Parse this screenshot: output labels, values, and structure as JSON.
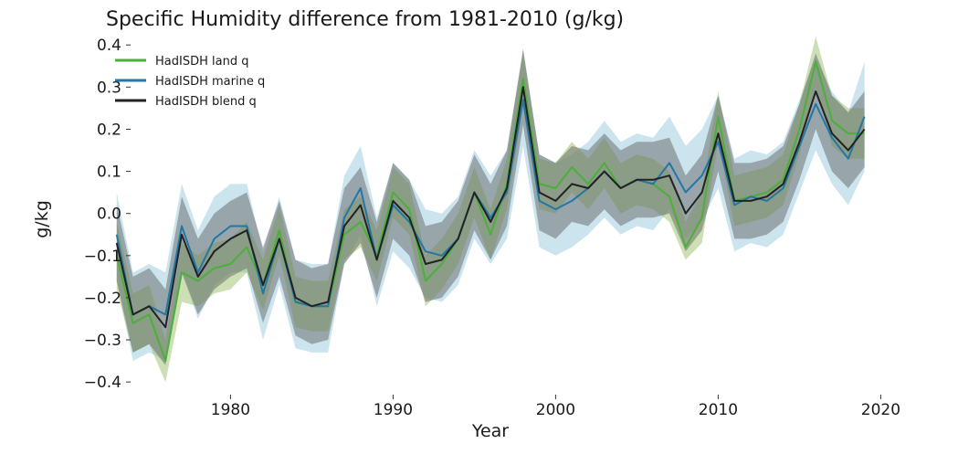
{
  "chart_data": {
    "type": "line",
    "title": "Specific Humidity difference from 1981-2010 (g/kg)",
    "xlabel": "Year",
    "ylabel": "g/kg",
    "xlim": [
      1972,
      2022
    ],
    "ylim": [
      -0.43,
      0.42
    ],
    "xticks": [
      1980,
      1990,
      2000,
      2010,
      2020
    ],
    "yticks": [
      0.4,
      0.3,
      0.2,
      0.1,
      0.0,
      -0.1,
      -0.2,
      -0.3,
      -0.4
    ],
    "ytick_labels": [
      "0.4",
      "0.3",
      "0.2",
      "0.1",
      "0.0",
      "−0.1",
      "−0.2",
      "−0.3",
      "−0.4"
    ],
    "grid": false,
    "legend_position": "top-left",
    "x": [
      1973,
      1974,
      1975,
      1976,
      1977,
      1978,
      1979,
      1980,
      1981,
      1982,
      1983,
      1984,
      1985,
      1986,
      1987,
      1988,
      1989,
      1990,
      1991,
      1992,
      1993,
      1994,
      1995,
      1996,
      1997,
      1998,
      1999,
      2000,
      2001,
      2002,
      2003,
      2004,
      2005,
      2006,
      2007,
      2008,
      2009,
      2010,
      2011,
      2012,
      2013,
      2014,
      2015,
      2016,
      2017,
      2018,
      2019
    ],
    "series": [
      {
        "name": "HadISDH land q",
        "color": "#4caf3c",
        "band_color": "#9bbf6a",
        "values": [
          -0.1,
          -0.26,
          -0.24,
          -0.35,
          -0.14,
          -0.16,
          -0.13,
          -0.12,
          -0.08,
          -0.17,
          -0.04,
          -0.21,
          -0.22,
          -0.22,
          -0.05,
          -0.02,
          -0.1,
          0.05,
          0.01,
          -0.16,
          -0.12,
          -0.06,
          0.05,
          -0.05,
          0.07,
          0.32,
          0.07,
          0.06,
          0.11,
          0.07,
          0.12,
          0.06,
          0.08,
          0.07,
          0.04,
          -0.08,
          -0.01,
          0.23,
          0.03,
          0.04,
          0.05,
          0.08,
          0.2,
          0.36,
          0.22,
          0.19,
          0.19
        ],
        "lower": [
          -0.18,
          -0.33,
          -0.31,
          -0.4,
          -0.21,
          -0.22,
          -0.19,
          -0.18,
          -0.14,
          -0.23,
          -0.1,
          -0.27,
          -0.28,
          -0.28,
          -0.11,
          -0.08,
          -0.16,
          -0.01,
          -0.05,
          -0.22,
          -0.18,
          -0.12,
          -0.01,
          -0.11,
          0.01,
          0.25,
          0.01,
          0.0,
          0.05,
          0.01,
          0.06,
          0.0,
          0.02,
          0.01,
          -0.02,
          -0.11,
          -0.07,
          0.17,
          -0.03,
          -0.02,
          -0.01,
          0.02,
          0.14,
          0.3,
          0.16,
          0.13,
          0.13
        ],
        "upper": [
          -0.02,
          -0.19,
          -0.17,
          -0.3,
          -0.07,
          -0.1,
          -0.07,
          -0.06,
          -0.02,
          -0.11,
          0.02,
          -0.15,
          -0.16,
          -0.16,
          0.01,
          0.04,
          -0.04,
          0.11,
          0.07,
          -0.1,
          -0.06,
          0.0,
          0.11,
          0.01,
          0.13,
          0.39,
          0.13,
          0.12,
          0.17,
          0.13,
          0.18,
          0.12,
          0.14,
          0.13,
          0.1,
          -0.02,
          0.05,
          0.29,
          0.09,
          0.1,
          0.11,
          0.14,
          0.26,
          0.42,
          0.28,
          0.25,
          0.25
        ]
      },
      {
        "name": "HadISDH marine q",
        "color": "#2277a6",
        "band_color": "#8cc3da",
        "values": [
          -0.05,
          -0.24,
          -0.22,
          -0.24,
          -0.03,
          -0.14,
          -0.06,
          -0.03,
          -0.03,
          -0.19,
          -0.06,
          -0.21,
          -0.22,
          -0.22,
          -0.01,
          0.06,
          -0.11,
          0.02,
          -0.02,
          -0.09,
          -0.1,
          -0.06,
          0.05,
          -0.01,
          0.05,
          0.27,
          0.03,
          0.01,
          0.03,
          0.06,
          0.1,
          0.06,
          0.08,
          0.07,
          0.12,
          0.05,
          0.09,
          0.17,
          0.02,
          0.04,
          0.03,
          0.06,
          0.16,
          0.26,
          0.18,
          0.13,
          0.23
        ],
        "lower": [
          -0.16,
          -0.35,
          -0.33,
          -0.35,
          -0.14,
          -0.25,
          -0.17,
          -0.14,
          -0.14,
          -0.3,
          -0.17,
          -0.32,
          -0.33,
          -0.33,
          -0.12,
          -0.05,
          -0.22,
          -0.09,
          -0.13,
          -0.2,
          -0.21,
          -0.17,
          -0.06,
          -0.12,
          -0.06,
          0.16,
          -0.08,
          -0.1,
          -0.08,
          -0.05,
          -0.01,
          -0.05,
          -0.03,
          -0.04,
          0.01,
          -0.06,
          -0.02,
          0.06,
          -0.09,
          -0.07,
          -0.08,
          -0.05,
          0.05,
          0.15,
          0.07,
          0.02,
          0.1
        ],
        "upper": [
          0.05,
          -0.14,
          -0.12,
          -0.14,
          0.07,
          -0.04,
          0.04,
          0.07,
          0.07,
          -0.09,
          0.04,
          -0.11,
          -0.12,
          -0.12,
          0.09,
          0.16,
          -0.01,
          0.12,
          0.08,
          0.01,
          0.0,
          0.04,
          0.15,
          0.09,
          0.15,
          0.38,
          0.14,
          0.12,
          0.14,
          0.17,
          0.22,
          0.17,
          0.19,
          0.18,
          0.23,
          0.16,
          0.2,
          0.28,
          0.13,
          0.15,
          0.14,
          0.17,
          0.27,
          0.37,
          0.29,
          0.24,
          0.36
        ]
      },
      {
        "name": "HadISDH blend q",
        "color": "#222222",
        "band_color": "#5a5a5a",
        "values": [
          -0.07,
          -0.24,
          -0.22,
          -0.27,
          -0.05,
          -0.15,
          -0.09,
          -0.06,
          -0.04,
          -0.17,
          -0.06,
          -0.2,
          -0.22,
          -0.21,
          -0.03,
          0.02,
          -0.11,
          0.03,
          -0.01,
          -0.12,
          -0.11,
          -0.06,
          0.05,
          -0.02,
          0.06,
          0.3,
          0.05,
          0.03,
          0.07,
          0.06,
          0.1,
          0.06,
          0.08,
          0.08,
          0.09,
          0.0,
          0.05,
          0.19,
          0.03,
          0.03,
          0.04,
          0.07,
          0.17,
          0.29,
          0.19,
          0.15,
          0.2
        ],
        "lower": [
          -0.16,
          -0.33,
          -0.31,
          -0.36,
          -0.14,
          -0.24,
          -0.18,
          -0.15,
          -0.13,
          -0.26,
          -0.15,
          -0.29,
          -0.31,
          -0.3,
          -0.12,
          -0.07,
          -0.2,
          -0.06,
          -0.1,
          -0.21,
          -0.2,
          -0.15,
          -0.04,
          -0.11,
          -0.03,
          0.21,
          -0.04,
          -0.06,
          -0.02,
          -0.03,
          0.01,
          -0.03,
          -0.01,
          -0.01,
          0.0,
          -0.09,
          -0.04,
          0.1,
          -0.06,
          -0.06,
          -0.05,
          -0.02,
          0.08,
          0.2,
          0.1,
          0.06,
          0.11
        ],
        "upper": [
          0.02,
          -0.15,
          -0.13,
          -0.18,
          0.04,
          -0.06,
          0.0,
          0.03,
          0.05,
          -0.08,
          0.03,
          -0.11,
          -0.13,
          -0.12,
          0.06,
          0.11,
          -0.02,
          0.12,
          0.08,
          -0.03,
          -0.02,
          0.03,
          0.14,
          0.07,
          0.15,
          0.39,
          0.14,
          0.12,
          0.16,
          0.15,
          0.19,
          0.15,
          0.17,
          0.17,
          0.18,
          0.09,
          0.14,
          0.28,
          0.12,
          0.12,
          0.13,
          0.16,
          0.26,
          0.38,
          0.28,
          0.24,
          0.29
        ]
      }
    ]
  }
}
